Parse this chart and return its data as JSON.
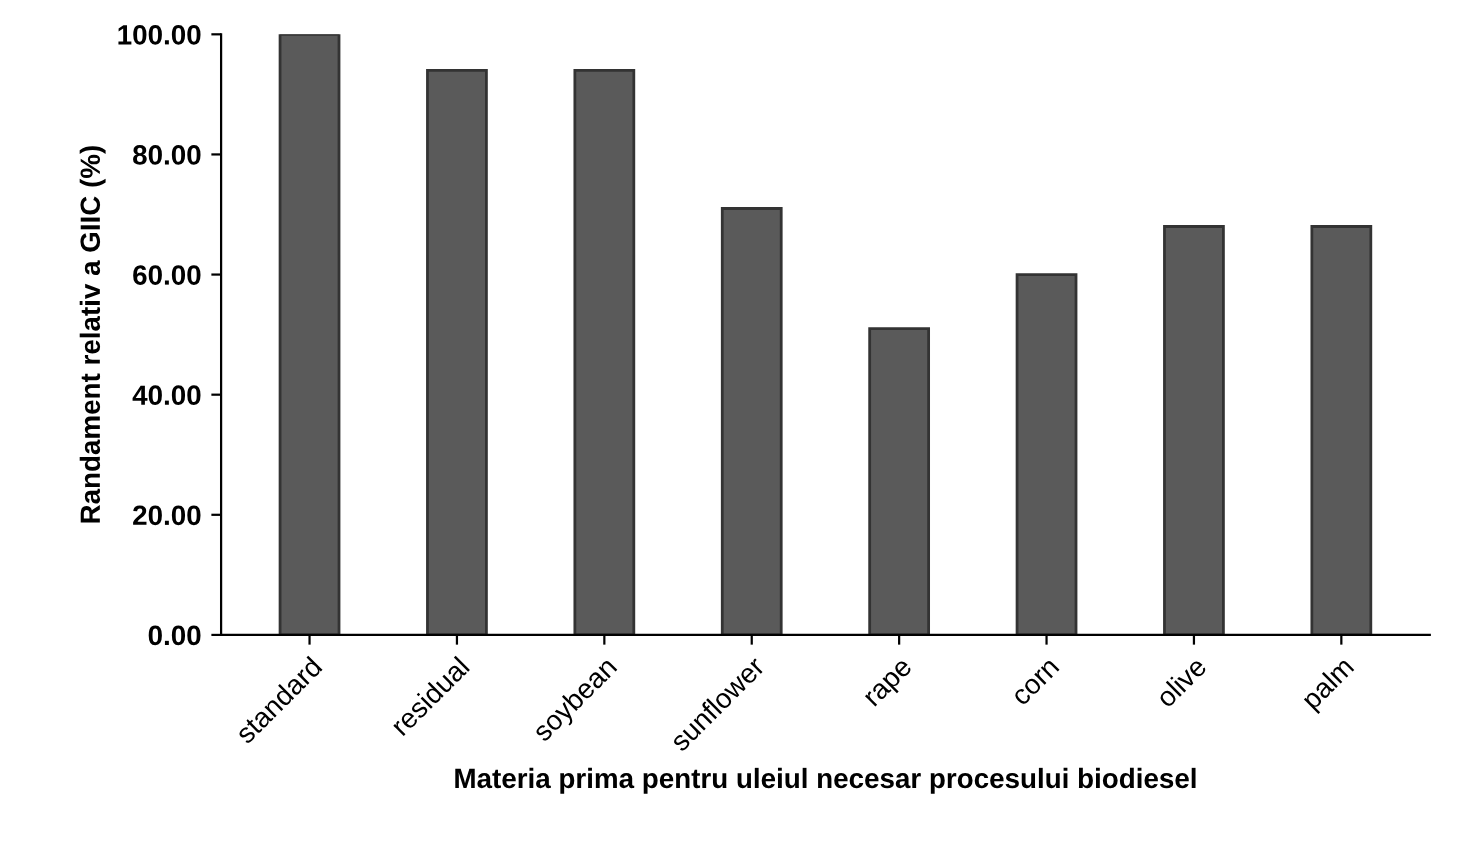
{
  "chart_data": {
    "type": "bar",
    "xlabel": "Materia prima pentru uleiul necesar procesului biodiesel",
    "ylabel": "Randament relativ a GIIC (%)",
    "categories": [
      "standard",
      "residual",
      "soybean",
      "sunflower",
      "rape",
      "corn",
      "olive",
      "palm"
    ],
    "values": [
      100,
      94,
      94,
      71,
      51,
      60,
      68,
      68
    ],
    "color": "#5a5a5a",
    "ylim": [
      0,
      100
    ],
    "yticks": [
      {
        "value": 0,
        "label": "0.00"
      },
      {
        "value": 20,
        "label": "20.00"
      },
      {
        "value": 40,
        "label": "40.00"
      },
      {
        "value": 60,
        "label": "60.00"
      },
      {
        "value": 80,
        "label": "80.00"
      },
      {
        "value": 100,
        "label": "100.00"
      }
    ],
    "grid": false
  }
}
